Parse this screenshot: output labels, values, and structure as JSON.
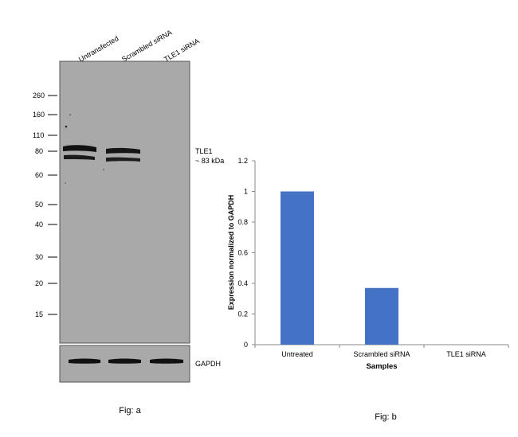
{
  "figure_a": {
    "lanes": [
      "Untransfected",
      "Scrambled siRNA",
      "TLE1 siRNA"
    ],
    "mw_markers": [
      "260",
      "160",
      "110",
      "80",
      "60",
      "50",
      "40",
      "30",
      "20",
      "15"
    ],
    "band_label_line1": "TLE1",
    "band_label_line2": "~ 83 kDa",
    "loading_control_label": "GAPDH",
    "caption": "Fig: a",
    "blot_background": "#a9a9a9",
    "band_color": "#111111"
  },
  "figure_b": {
    "caption": "Fig: b"
  },
  "chart_data": {
    "type": "bar",
    "title": "",
    "xlabel": "Samples",
    "ylabel": "Expression normalized to GAPDH",
    "categories": [
      "Untreated",
      "Scrambled siRNA",
      "TLE1 siRNA"
    ],
    "values": [
      1.0,
      0.37,
      0.0
    ],
    "ylim": [
      0,
      1.2
    ],
    "yticks": [
      "0",
      "0.2",
      "0.4",
      "0.6",
      "0.8",
      "1",
      "1.2"
    ],
    "bar_color": "#4472c4",
    "grid": false
  }
}
